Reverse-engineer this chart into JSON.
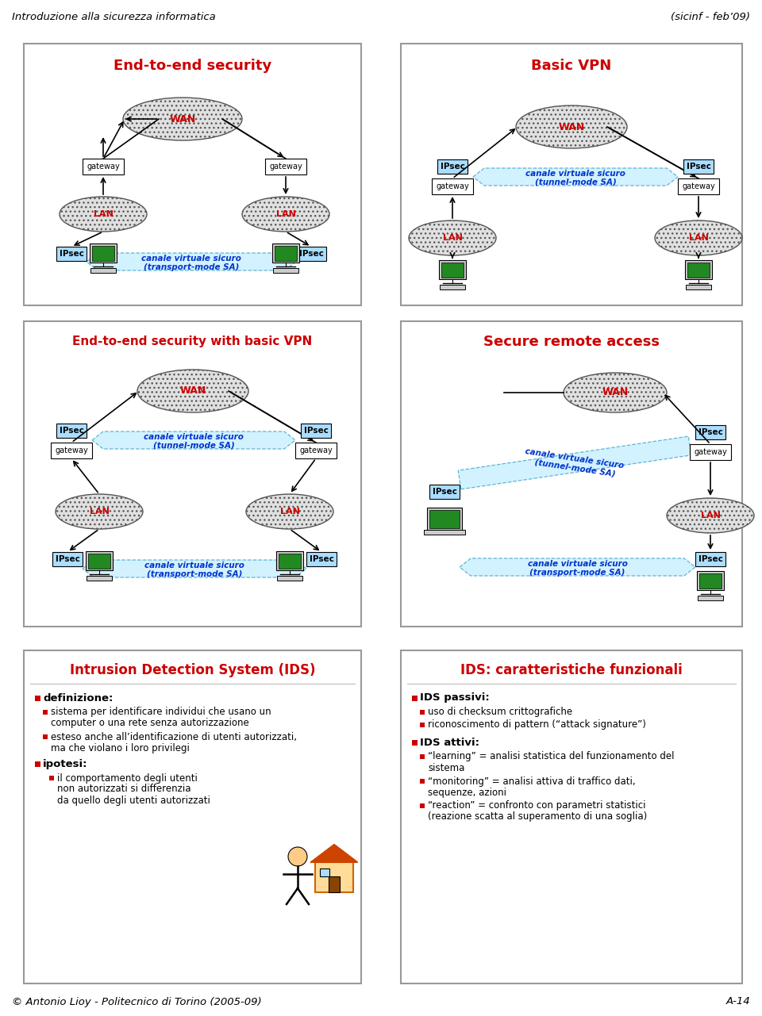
{
  "header_left": "Introduzione alla sicurezza informatica",
  "header_right": "(sicinf - feb’09)",
  "footer_left": "© Antonio Lioy - Politecnico di Torino (2005-09)",
  "footer_right": "A-14",
  "bottom_left_title": "Intrusion Detection System (IDS)",
  "bottom_right_title": "IDS: caratteristiche funzionali",
  "bg_color": "#ffffff",
  "text_red": "#cc0000",
  "text_blue": "#0033cc",
  "ipsec_fill": "#aaddff",
  "channel_fill": "#ccf0ff",
  "wan_fill": "#e0e0e0",
  "lan_fill": "#e0e0e0"
}
